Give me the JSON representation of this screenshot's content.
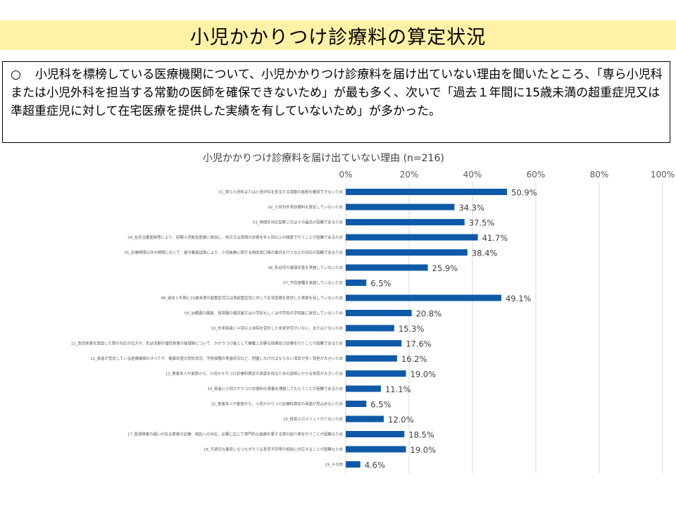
{
  "slide_title": "小児かかりつけ診療料の算定状況",
  "summary": {
    "bullet": "○",
    "text": "小児科を標榜している医療機関について、小児かかりつけ診療料を届け出ていない理由を聞いたところ、「専ら小児科または小児外科を担当する常勤の医師を確保できないため」が最も多く、次いで「過去１年間に15歳未満の超重症児又は準超重症児に対して在宅医療を提供した実績を有していないため」が多かった。"
  },
  "colors": {
    "bar": "#0f5aa8",
    "grid": "#d9d9d9",
    "title_band": "#fff2a6"
  },
  "chart_data": {
    "type": "bar",
    "orientation": "horizontal",
    "title": "小児かかりつけ診療料を届け出ていない理由 (n=216)",
    "xlim": [
      0,
      100
    ],
    "tick_labels": [
      "0%",
      "20%",
      "40%",
      "60%",
      "80%",
      "100%"
    ],
    "grid": true,
    "categories": [
      "01_専ら小児科または小児外科を担当する常勤の医師を確保できないため",
      "02_小児科外来診療料を算定していないため",
      "03_時間外対応加算２又は４の届出が困難であるため",
      "04_在宅当番医制等により、初期小児救急医療に参加し、休日又は夜間の診療を年６回以上の頻度で行うことが困難であるため",
      "05_診療時間以外の時間において、留守番電話等により、小児医療に関する相談窓口等の案内を行うなどの対応が困難であるため",
      "06_乳幼児の健康診査を実施していないため",
      "07_予防接種を実施していないため",
      "08_過去１年間に15歳未満の超重症児又は準超重症児に対して在宅医療を提供した実績を有していないため",
      "09_幼稚園の園医、保育園の嘱託医又は小学校もしくは中学校の学校医に就任していないため",
      "10_外来患者に４回以上自院を受診した未就学児がいない、または少ないため",
      "11_急性疾患を発症した際の対応の仕方や、乳幼児期の慢性疾患の管理等について、かかりつけ医として療養上必要な指導及び診療を行うことが困難であるため",
      "12_患者が受診している医療機関のすべてや、健康診査の受診状況、予防接種の実施状況など、把握しなければならない項目が多く負担が大きいため",
      "13_患者本人や家族から、小児かかりつけ診療料算定の承諾を得るための説明にかかる負担が大きいため",
      "14_患者に小児かかりつけ診療料の意義を理解してもらうことが困難であるため",
      "15_患者本人や家族から、小児かかりつけ診療料算定の承諾が見込めないため",
      "16_経営上のメリットが少ないため",
      "17_発達障害の疑いがある患者の診療、相談への対応、必要に応じて専門的な医療を要する際の紹介等を行うことが困難なため",
      "18_不適切な養育にもつながりうる育児不安等の相談に対応することが困難なため",
      "19_その他"
    ],
    "values": [
      50.9,
      34.3,
      37.5,
      41.7,
      38.4,
      25.9,
      6.5,
      49.1,
      20.8,
      15.3,
      17.6,
      16.2,
      19.0,
      11.1,
      6.5,
      12.0,
      18.5,
      19.0,
      4.6
    ],
    "value_labels": [
      "50.9%",
      "34.3%",
      "37.5%",
      "41.7%",
      "38.4%",
      "25.9%",
      "6.5%",
      "49.1%",
      "20.8%",
      "15.3%",
      "17.6%",
      "16.2%",
      "19.0%",
      "11.1%",
      "6.5%",
      "12.0%",
      "18.5%",
      "19.0%",
      "4.6%"
    ]
  }
}
